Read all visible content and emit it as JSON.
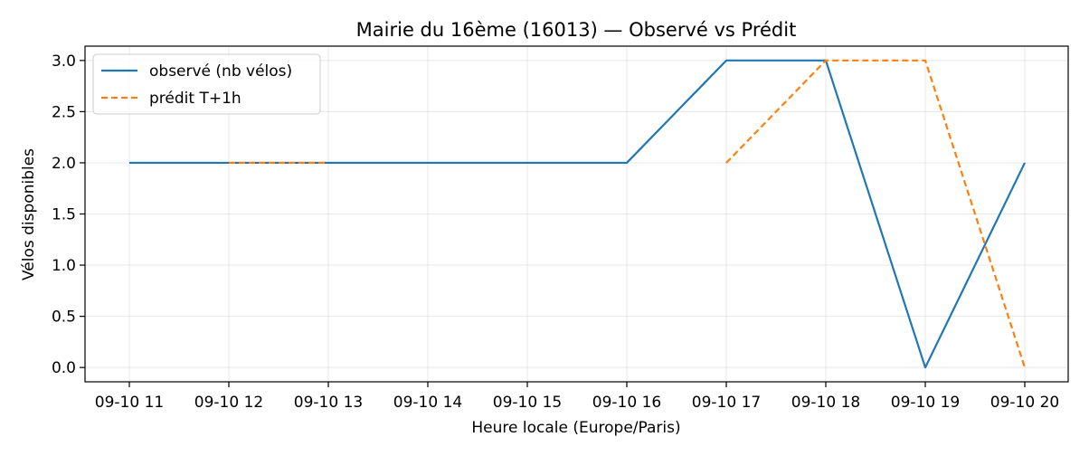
{
  "chart_data": {
    "type": "line",
    "title": "Mairie du 16ème (16013) — Observé vs Prédit",
    "xlabel": "Heure locale (Europe/Paris)",
    "ylabel": "Vélos disponibles",
    "categories": [
      "09-10 11",
      "09-10 12",
      "09-10 13",
      "09-10 14",
      "09-10 15",
      "09-10 16",
      "09-10 17",
      "09-10 18",
      "09-10 19",
      "09-10 20"
    ],
    "yticks": [
      "0.0",
      "0.5",
      "1.0",
      "1.5",
      "2.0",
      "2.5",
      "3.0"
    ],
    "ylim": [
      -0.14,
      3.14
    ],
    "grid": true,
    "legend_position": "top-left",
    "series": [
      {
        "name": "observé (nb vélos)",
        "color": "#1f77b4",
        "style": "solid",
        "values": [
          2,
          2,
          2,
          2,
          2,
          2,
          3,
          3,
          0,
          2
        ]
      },
      {
        "name": "prédit T+1h",
        "color": "#ff7f0e",
        "style": "dashed",
        "values": [
          null,
          2,
          2,
          null,
          null,
          null,
          2,
          3,
          3,
          0
        ]
      }
    ]
  }
}
